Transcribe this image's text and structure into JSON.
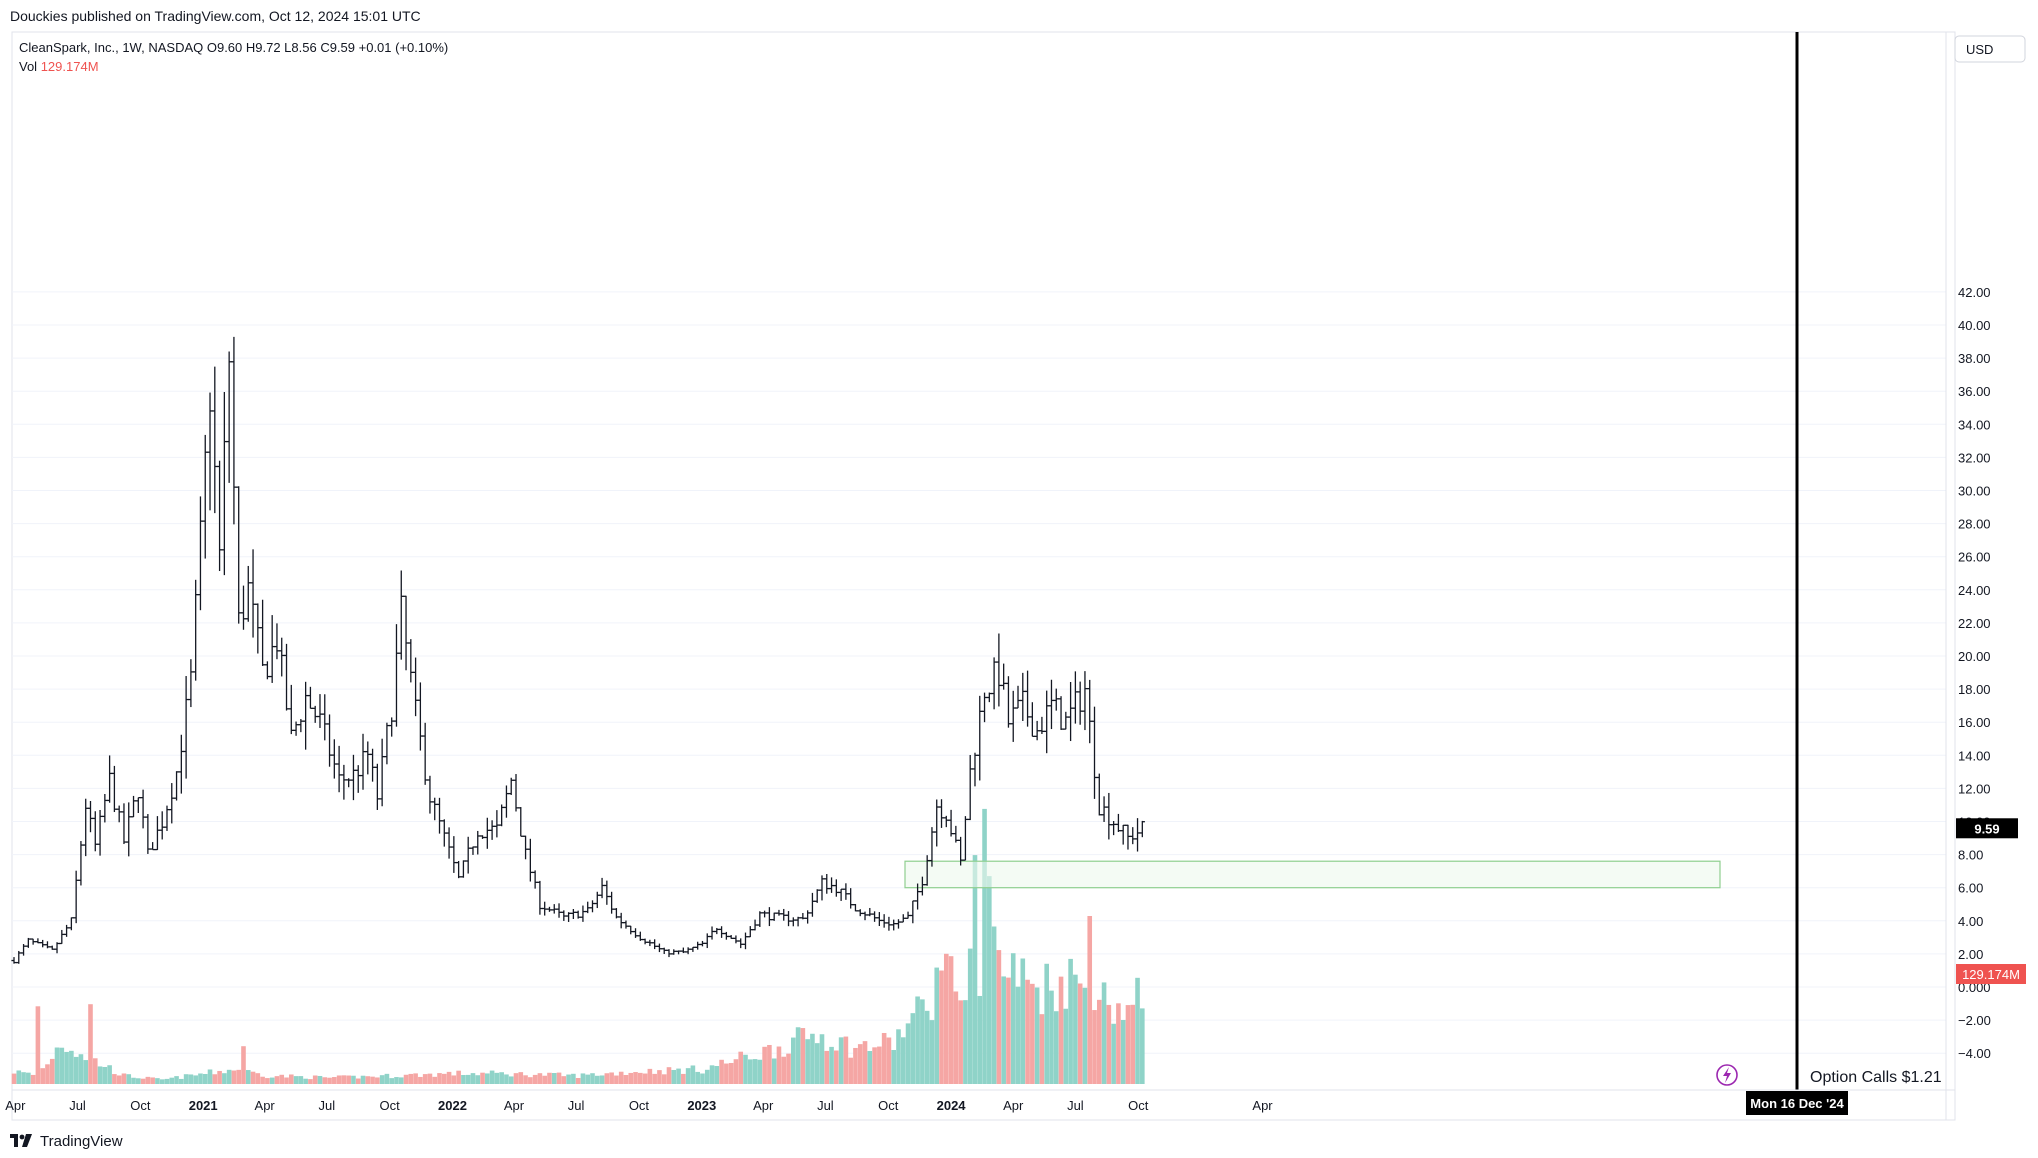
{
  "header": {
    "publisher_line": "Douckies published on TradingView.com, Oct 12, 2024 15:01 UTC"
  },
  "legend": {
    "symbol_line": "CleanSpark, Inc., 1W, NASDAQ  O9.60  H9.72  L8.56  C9.59  +0.01 (+0.10%)",
    "vol_label": "Vol",
    "vol_value": "129.174M"
  },
  "axis": {
    "currency": "USD",
    "price_ticks": [
      "42.00",
      "40.00",
      "38.00",
      "36.00",
      "34.00",
      "32.00",
      "30.00",
      "28.00",
      "26.00",
      "24.00",
      "22.00",
      "20.00",
      "18.00",
      "16.00",
      "14.00",
      "12.00",
      "10.00",
      "8.00",
      "6.00",
      "4.00",
      "2.00",
      "0.000",
      "−2.00",
      "−4.00"
    ],
    "price_tick_values": [
      42,
      40,
      38,
      36,
      34,
      32,
      30,
      28,
      26,
      24,
      22,
      20,
      18,
      16,
      14,
      12,
      10,
      8,
      6,
      4,
      2,
      0,
      -2,
      -4
    ],
    "time_ticks": [
      "Apr",
      "Jul",
      "Oct",
      "2021",
      "Apr",
      "Jul",
      "Oct",
      "2022",
      "Apr",
      "Jul",
      "Oct",
      "2023",
      "Apr",
      "Jul",
      "Oct",
      "2024",
      "Apr",
      "Jul",
      "Oct",
      "Apr"
    ],
    "time_tick_bold": [
      false,
      false,
      false,
      true,
      false,
      false,
      false,
      true,
      false,
      false,
      false,
      true,
      false,
      false,
      false,
      true,
      false,
      false,
      false,
      false
    ],
    "last_price_label": "9.59",
    "last_volume_label": "129.174M",
    "crosshair_date_label": "Mon 16 Dec '24"
  },
  "annotations": {
    "option_calls_text": "Option Calls $1.21",
    "zone_top": 7.6,
    "zone_bottom": 6.0
  },
  "footer": {
    "brand": "TradingView"
  },
  "colors": {
    "bar": "#131722",
    "volume_up": "#8fd3c8",
    "volume_down": "#f5a6a4",
    "zone_border": "#8fcf8f",
    "zone_fill": "#edf8ed",
    "vertical_line": "#000000",
    "volume_label_bg": "#ef5350",
    "price_label_bg": "#000000",
    "grid": "#f0f3fa"
  },
  "chart_data": {
    "type": "ohlc",
    "symbol": "CleanSpark, Inc.",
    "timeframe": "1W",
    "exchange": "NASDAQ",
    "ylim": [
      -4.5,
      43.5
    ],
    "price_anchors": [
      [
        "2020-03-30",
        1.6
      ],
      [
        "2020-04-20",
        2.8
      ],
      [
        "2020-05-25",
        2.2
      ],
      [
        "2020-06-22",
        4.0
      ],
      [
        "2020-07-13",
        11.0
      ],
      [
        "2020-07-27",
        8.5
      ],
      [
        "2020-08-17",
        12.5
      ],
      [
        "2020-09-07",
        8.8
      ],
      [
        "2020-09-28",
        12.0
      ],
      [
        "2020-10-12",
        8.0
      ],
      [
        "2020-11-02",
        10.0
      ],
      [
        "2020-11-23",
        13.0
      ],
      [
        "2020-12-14",
        18.5
      ],
      [
        "2020-12-28",
        27.0
      ],
      [
        "2021-01-11",
        36.0
      ],
      [
        "2021-01-25",
        26.0
      ],
      [
        "2021-02-08",
        38.0
      ],
      [
        "2021-02-22",
        22.0
      ],
      [
        "2021-03-08",
        24.0
      ],
      [
        "2021-03-29",
        19.0
      ],
      [
        "2021-04-19",
        21.0
      ],
      [
        "2021-05-10",
        15.0
      ],
      [
        "2021-05-31",
        17.5
      ],
      [
        "2021-06-21",
        16.0
      ],
      [
        "2021-07-19",
        12.5
      ],
      [
        "2021-08-09",
        12.8
      ],
      [
        "2021-08-30",
        14.0
      ],
      [
        "2021-09-13",
        11.5
      ],
      [
        "2021-10-04",
        17.0
      ],
      [
        "2021-10-18",
        22.5
      ],
      [
        "2021-11-08",
        16.5
      ],
      [
        "2021-11-29",
        11.5
      ],
      [
        "2021-12-20",
        9.0
      ],
      [
        "2022-01-10",
        6.5
      ],
      [
        "2022-02-07",
        9.5
      ],
      [
        "2022-03-07",
        9.5
      ],
      [
        "2022-03-28",
        12.5
      ],
      [
        "2022-04-18",
        8.0
      ],
      [
        "2022-05-09",
        5.0
      ],
      [
        "2022-06-13",
        4.2
      ],
      [
        "2022-07-18",
        4.6
      ],
      [
        "2022-08-08",
        6.0
      ],
      [
        "2022-08-29",
        4.2
      ],
      [
        "2022-10-03",
        3.0
      ],
      [
        "2022-11-07",
        2.1
      ],
      [
        "2022-12-05",
        2.1
      ],
      [
        "2023-01-02",
        2.6
      ],
      [
        "2023-01-23",
        3.6
      ],
      [
        "2023-02-27",
        2.6
      ],
      [
        "2023-03-27",
        4.4
      ],
      [
        "2023-04-24",
        4.2
      ],
      [
        "2023-05-29",
        4.1
      ],
      [
        "2023-06-26",
        6.3
      ],
      [
        "2023-07-17",
        6.0
      ],
      [
        "2023-08-14",
        4.8
      ],
      [
        "2023-09-18",
        4.0
      ],
      [
        "2023-10-09",
        3.8
      ],
      [
        "2023-10-30",
        4.2
      ],
      [
        "2023-11-20",
        6.5
      ],
      [
        "2023-12-11",
        11.0
      ],
      [
        "2023-12-25",
        10.5
      ],
      [
        "2024-01-15",
        7.5
      ],
      [
        "2024-01-29",
        13.0
      ],
      [
        "2024-02-19",
        18.0
      ],
      [
        "2024-03-11",
        19.0
      ],
      [
        "2024-03-25",
        16.0
      ],
      [
        "2024-04-15",
        17.0
      ],
      [
        "2024-05-06",
        15.5
      ],
      [
        "2024-05-27",
        17.0
      ],
      [
        "2024-06-17",
        16.0
      ],
      [
        "2024-07-15",
        18.0
      ],
      [
        "2024-08-05",
        11.0
      ],
      [
        "2024-08-26",
        10.0
      ],
      [
        "2024-09-16",
        9.0
      ],
      [
        "2024-10-07",
        9.59
      ]
    ],
    "volume_anchors": [
      [
        "2020-03-30",
        0.6
      ],
      [
        "2020-05-04",
        0.4
      ],
      [
        "2020-06-08",
        2.0
      ],
      [
        "2020-07-27",
        1.1
      ],
      [
        "2020-09-07",
        0.4
      ],
      [
        "2020-11-02",
        0.2
      ],
      [
        "2021-01-04",
        0.5
      ],
      [
        "2021-02-15",
        0.7
      ],
      [
        "2021-04-05",
        0.4
      ],
      [
        "2021-07-05",
        0.3
      ],
      [
        "2021-10-11",
        0.4
      ],
      [
        "2022-01-03",
        0.5
      ],
      [
        "2022-03-07",
        0.5
      ],
      [
        "2022-07-04",
        0.4
      ],
      [
        "2022-10-03",
        0.6
      ],
      [
        "2023-01-02",
        0.7
      ],
      [
        "2023-04-10",
        1.6
      ],
      [
        "2023-06-19",
        2.4
      ],
      [
        "2023-08-14",
        1.7
      ],
      [
        "2023-10-09",
        2.0
      ],
      [
        "2023-11-20",
        3.6
      ],
      [
        "2023-12-18",
        5.0
      ],
      [
        "2024-01-15",
        4.5
      ],
      [
        "2024-02-19",
        6.0
      ],
      [
        "2024-03-18",
        5.5
      ],
      [
        "2024-05-06",
        4.6
      ],
      [
        "2024-06-24",
        5.0
      ],
      [
        "2024-08-12",
        4.0
      ],
      [
        "2024-09-16",
        3.5
      ],
      [
        "2024-10-07",
        4.2
      ]
    ],
    "volume_spikes": [
      [
        "2020-05-04",
        3.7
      ],
      [
        "2020-07-20",
        3.8
      ],
      [
        "2021-03-01",
        1.8
      ],
      [
        "2023-12-25",
        6.2
      ],
      [
        "2024-02-05",
        10.9
      ],
      [
        "2024-02-19",
        13.1
      ],
      [
        "2024-02-26",
        9.9
      ],
      [
        "2024-03-04",
        7.5
      ],
      [
        "2024-07-22",
        8.0
      ],
      [
        "2024-10-07",
        3.6
      ]
    ]
  }
}
